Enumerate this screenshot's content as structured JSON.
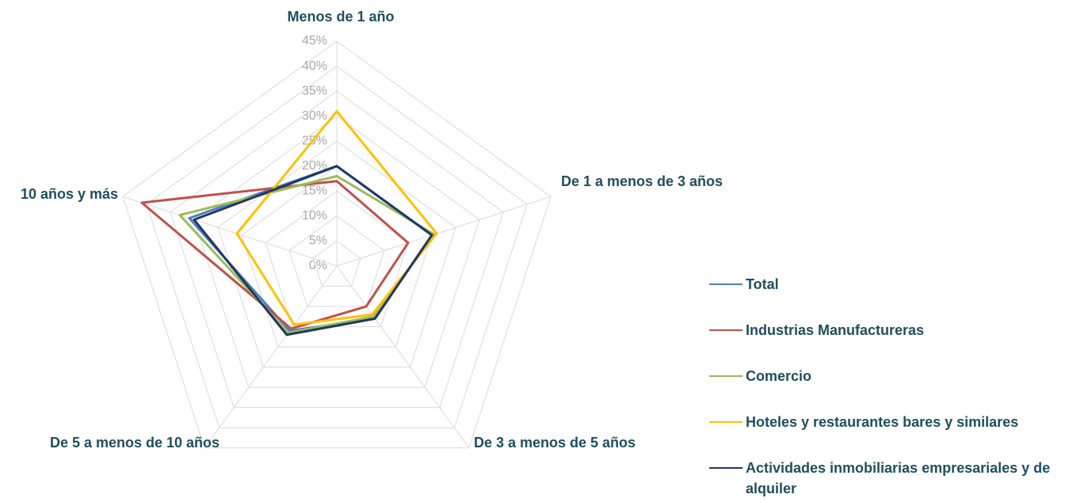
{
  "chart_data": {
    "type": "radar",
    "categories": [
      "Menos de 1 año",
      "De 1 a menos de 3 años",
      "De 3 a menos de 5 años",
      "De 5 a menos de 10 años",
      "10 años y más"
    ],
    "series": [
      {
        "name": "Total",
        "color": "#4f81bd",
        "values": [
          20,
          20,
          13,
          16,
          31
        ]
      },
      {
        "name": "Industrias Manufactureras",
        "color": "#c0504d",
        "values": [
          17,
          15,
          10,
          15.5,
          41
        ]
      },
      {
        "name": "Comercio",
        "color": "#9bbb59",
        "values": [
          18,
          20.5,
          12.5,
          16.5,
          33
        ]
      },
      {
        "name": "Hoteles y restaurantes bares y similares",
        "color": "#ffc000",
        "values": [
          31,
          21,
          12,
          14.5,
          21
        ]
      },
      {
        "name": "Actividades inmobiliarias empresariales y de alquiler",
        "color": "#1f3864",
        "values": [
          20,
          20,
          13,
          17,
          30
        ]
      }
    ],
    "ylim": [
      0,
      45
    ],
    "yticks": [
      {
        "value": 0,
        "label": "0%"
      },
      {
        "value": 5,
        "label": "5%"
      },
      {
        "value": 10,
        "label": "10%"
      },
      {
        "value": 15,
        "label": "15%"
      },
      {
        "value": 20,
        "label": "20%"
      },
      {
        "value": 25,
        "label": "25%"
      },
      {
        "value": 30,
        "label": "30%"
      },
      {
        "value": 35,
        "label": "35%"
      },
      {
        "value": 40,
        "label": "40%"
      },
      {
        "value": 45,
        "label": "45%"
      }
    ],
    "grid": true
  }
}
